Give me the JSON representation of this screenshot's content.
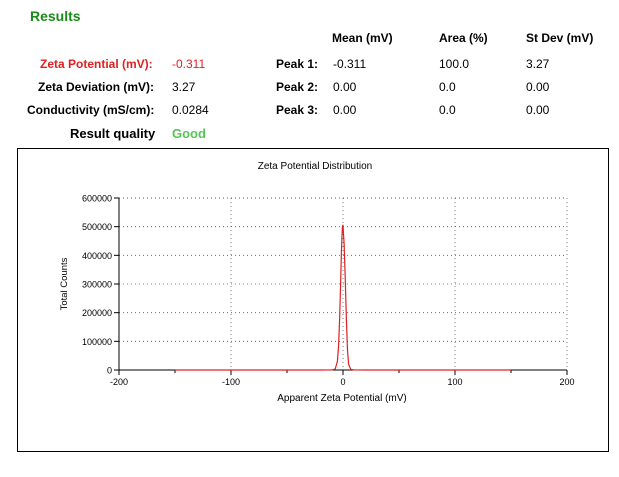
{
  "results": {
    "title": "Results",
    "zeta_potential_label": "Zeta Potential (mV):",
    "zeta_potential_value": "-0.311",
    "zeta_deviation_label": "Zeta Deviation (mV):",
    "zeta_deviation_value": "3.27",
    "conductivity_label": "Conductivity (mS/cm):",
    "conductivity_value": "0.0284",
    "quality_label": "Result quality",
    "quality_value": "Good"
  },
  "peaks_table": {
    "headers": [
      "Mean (mV)",
      "Area (%)",
      "St Dev (mV)"
    ],
    "rows": [
      {
        "label": "Peak 1:",
        "mean": "-0.311",
        "area": "100.0",
        "stdev": "3.27"
      },
      {
        "label": "Peak 2:",
        "mean": "0.00",
        "area": "0.0",
        "stdev": "0.00"
      },
      {
        "label": "Peak 3:",
        "mean": "0.00",
        "area": "0.0",
        "stdev": "0.00"
      }
    ]
  },
  "colors": {
    "title_green": "#1a8a1a",
    "highlight_red": "#e02020",
    "good_green": "#55c455",
    "curve_red": "#e02020"
  },
  "chart_data": {
    "type": "line",
    "title": "Zeta Potential Distribution",
    "xlabel": "Apparent Zeta Potential (mV)",
    "ylabel": "Total Counts",
    "xlim": [
      -200,
      200
    ],
    "ylim": [
      0,
      600000
    ],
    "x_ticks": [
      "-200",
      "-100",
      "0",
      "100",
      "200"
    ],
    "y_ticks": [
      "0",
      "100000",
      "200000",
      "300000",
      "400000",
      "500000",
      "600000"
    ],
    "grid": true,
    "series": [
      {
        "color": "#e02020",
        "x": [
          -150,
          -20,
          -10,
          -7,
          -5,
          -4,
          -3,
          -2,
          -1.5,
          -1,
          -0.5,
          0,
          1,
          2,
          3,
          4,
          5,
          7,
          10,
          20,
          150
        ],
        "y": [
          0,
          0,
          200,
          3000,
          30000,
          80000,
          180000,
          320000,
          400000,
          460000,
          500000,
          505000,
          440000,
          320000,
          180000,
          70000,
          20000,
          2000,
          200,
          0,
          0
        ]
      }
    ]
  }
}
